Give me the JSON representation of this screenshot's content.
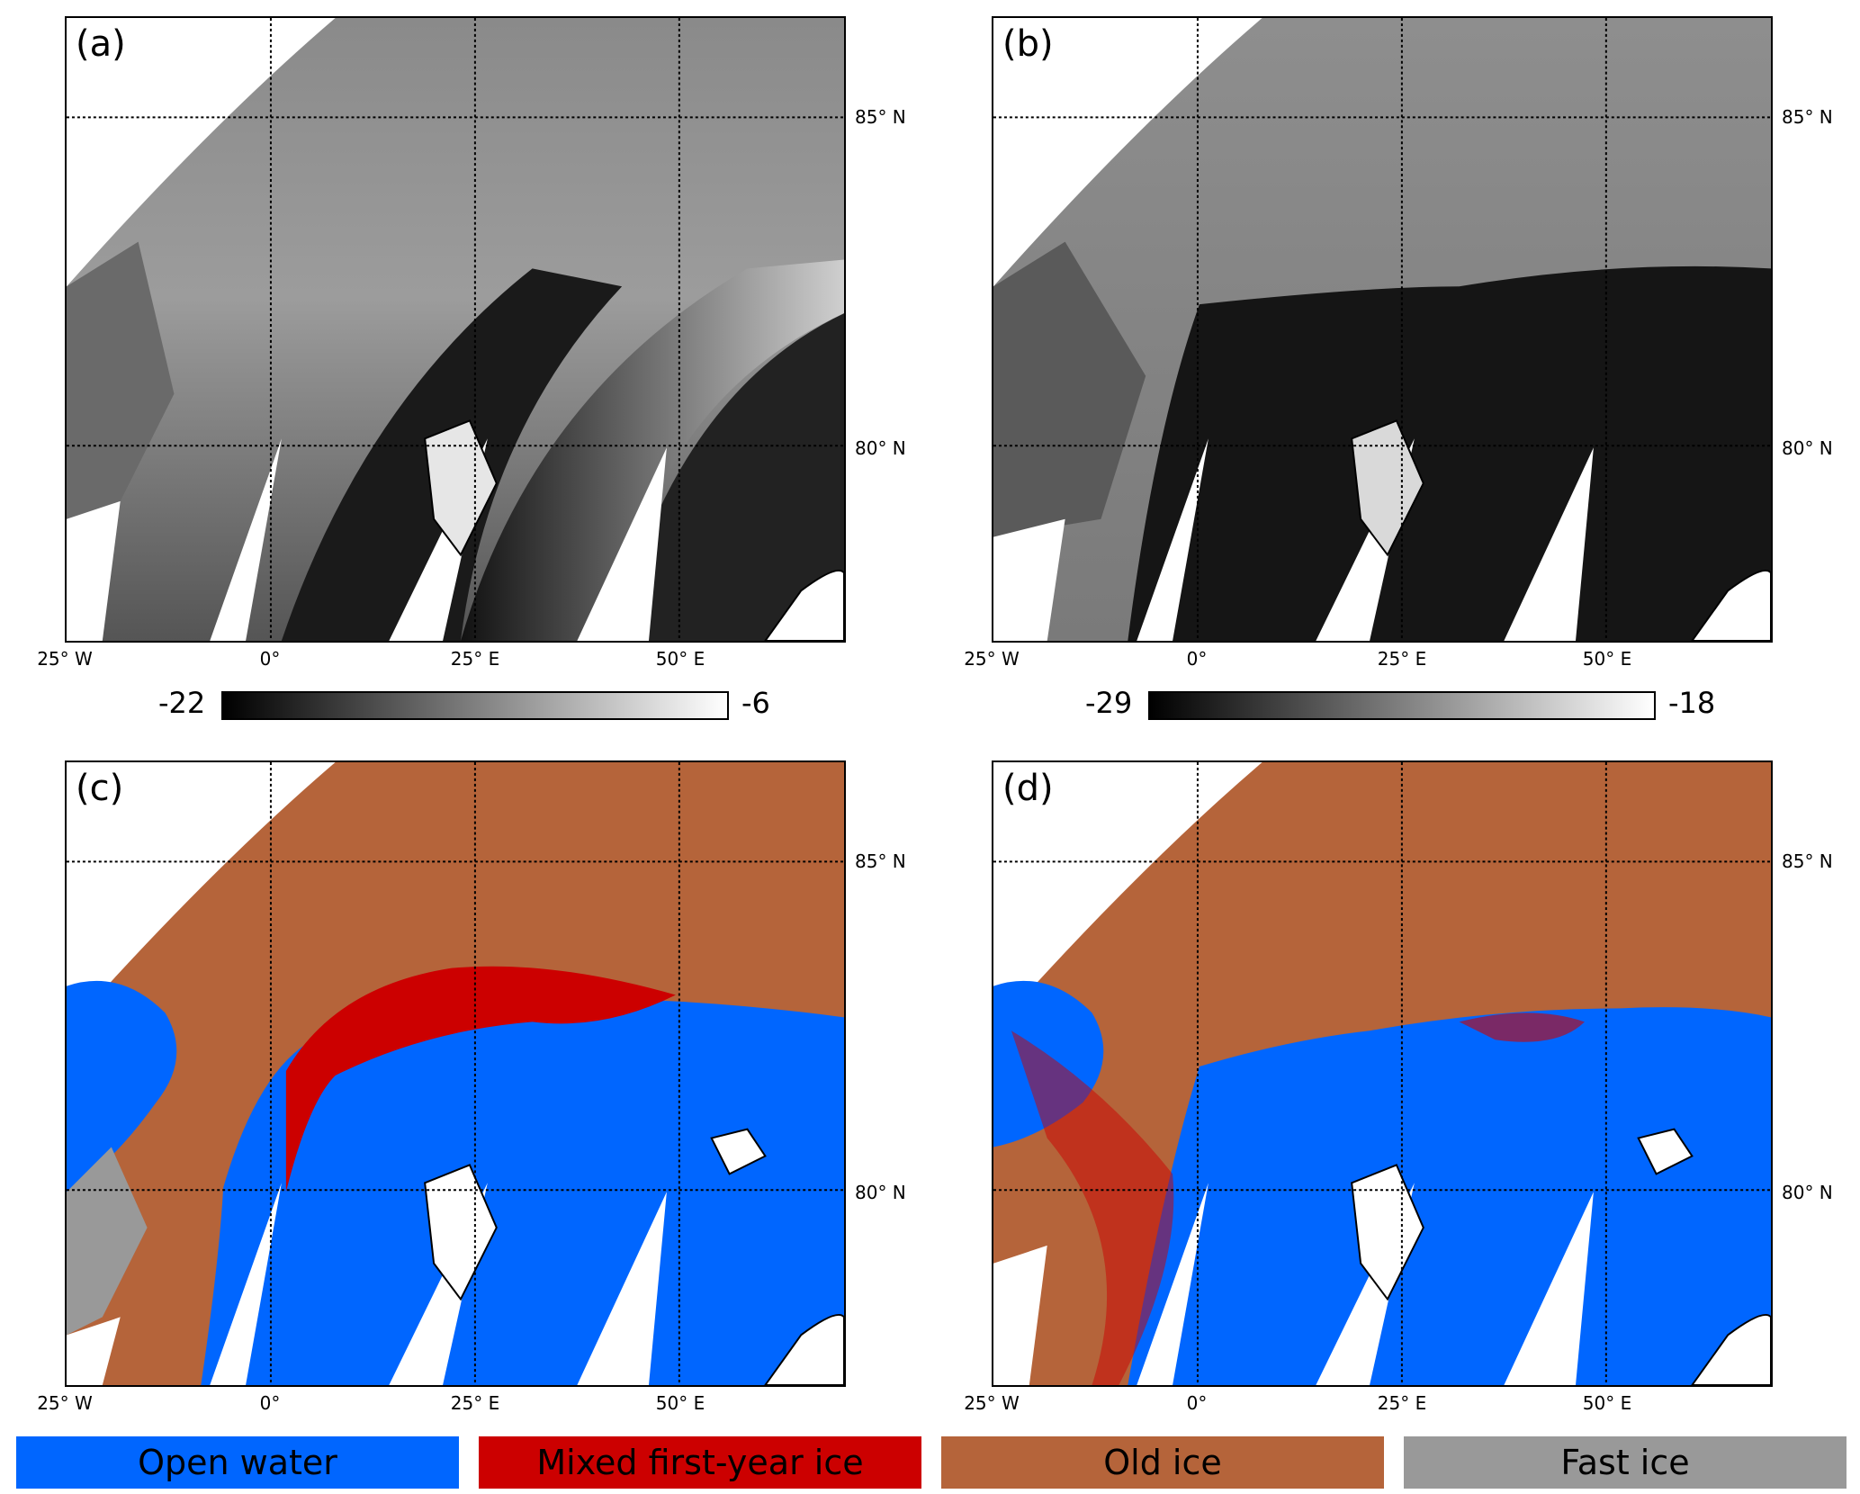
{
  "panels": [
    {
      "label": "(a)"
    },
    {
      "label": "(b)"
    },
    {
      "label": "(c)"
    },
    {
      "label": "(d)"
    }
  ],
  "lat_labels": {
    "lat85": "85° N",
    "lat80": "80° N"
  },
  "lon_labels": {
    "w25": "25° W",
    "zero": "0°",
    "e25": "25° E",
    "e50": "50° E"
  },
  "colorbar_a": {
    "min": "-22",
    "max": "-6"
  },
  "colorbar_b": {
    "min": "-29",
    "max": "-18"
  },
  "legend": [
    {
      "label": "Open water",
      "color": "#0066ff"
    },
    {
      "label": "Mixed first-year ice",
      "color": "#cc0000"
    },
    {
      "label": "Old ice",
      "color": "#b5643a"
    },
    {
      "label": "Fast ice",
      "color": "#999999"
    }
  ],
  "colors": {
    "open_water": "#0066ff",
    "mixed_fyi": "#cc0000",
    "old_ice": "#b5643a",
    "fast_ice": "#999999"
  }
}
